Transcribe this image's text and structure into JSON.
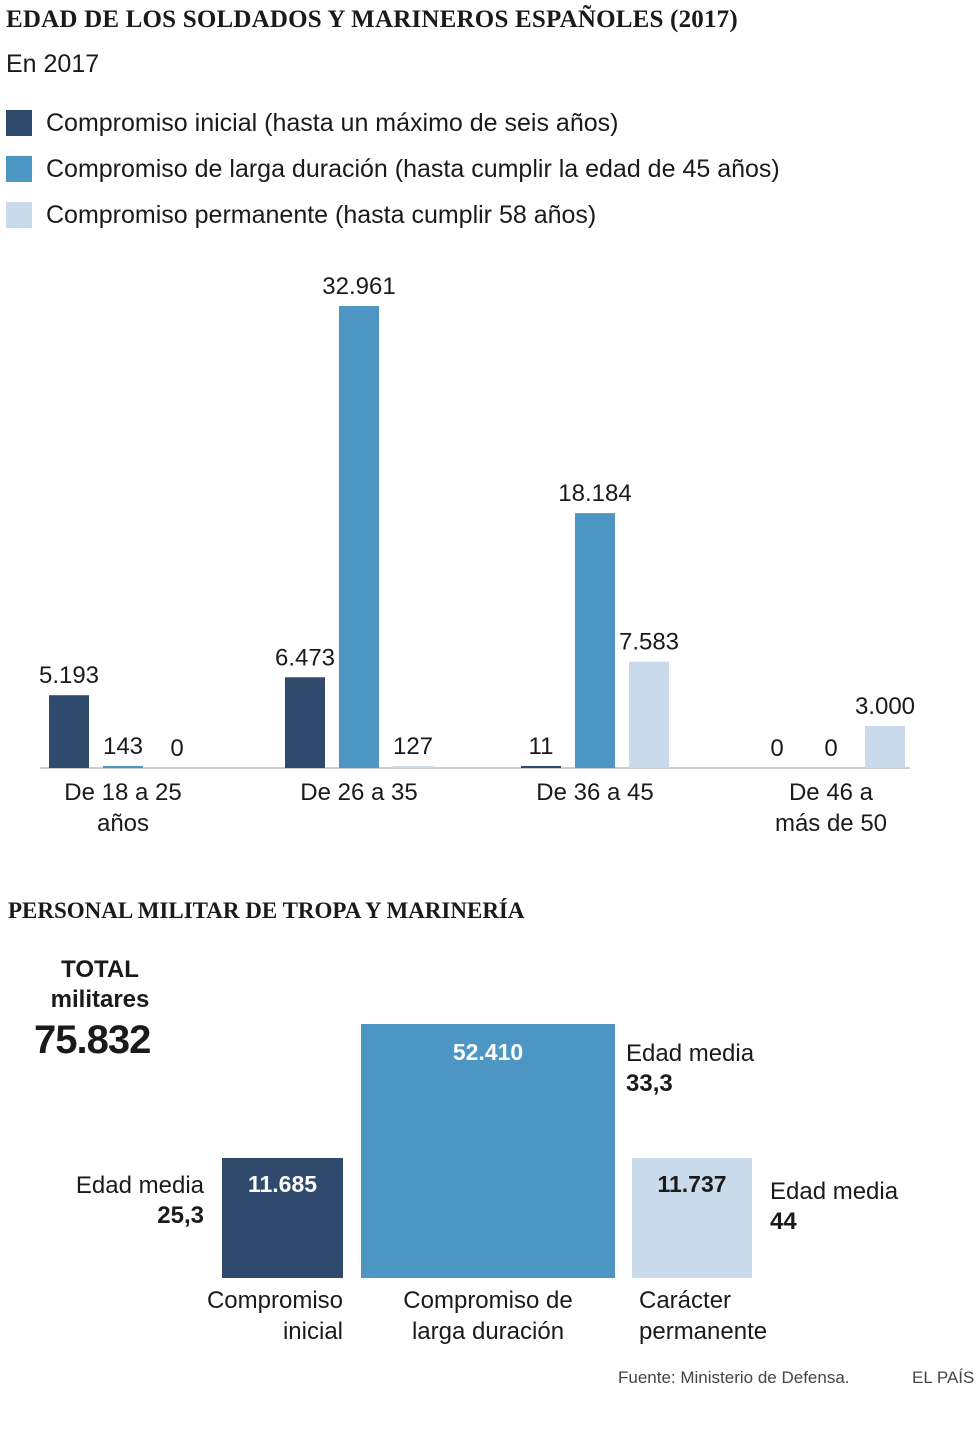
{
  "header": {
    "title": "EDAD DE LOS SOLDADOS Y MARINEROS ESPAÑOLES (2017)",
    "subtitle": "En 2017"
  },
  "legend": [
    {
      "label": "Compromiso inicial (hasta un máximo de seis años)",
      "color": "#2f4a6d"
    },
    {
      "label": "Compromiso de larga duración (hasta cumplir la edad de 45 años)",
      "color": "#4d96c4"
    },
    {
      "label": "Compromiso permanente (hasta cumplir 58 años)",
      "color": "#c9dbea"
    }
  ],
  "chart_data": [
    {
      "type": "bar",
      "title": "EDAD DE LOS SOLDADOS Y MARINEROS ESPAÑOLES (2017)",
      "subtitle": "En 2017",
      "categories": [
        [
          "De 18 a 25",
          "años"
        ],
        [
          "De 26 a 35"
        ],
        [
          "De 36 a 45"
        ],
        [
          "De 46 a",
          "más de 50"
        ]
      ],
      "series": [
        {
          "name": "Compromiso inicial (hasta un máximo de seis años)",
          "color": "#2f4a6d",
          "values": [
            5193,
            6473,
            11,
            0
          ],
          "labels": [
            "5.193",
            "6.473",
            "11",
            "0"
          ]
        },
        {
          "name": "Compromiso de larga duración (hasta cumplir la edad de 45 años)",
          "color": "#4d96c4",
          "values": [
            143,
            32961,
            18184,
            0
          ],
          "labels": [
            "143",
            "32.961",
            "18.184",
            "0"
          ]
        },
        {
          "name": "Compromiso permanente (hasta cumplir 58 años)",
          "color": "#c9dbea",
          "values": [
            0,
            127,
            7583,
            3000
          ],
          "labels": [
            "0",
            "127",
            "7.583",
            "3.000"
          ]
        }
      ],
      "ylim": [
        0,
        32961
      ],
      "grid": false
    },
    {
      "type": "bar",
      "title": "PERSONAL MILITAR DE TROPA Y MARINERÍA",
      "total_label": [
        "TOTAL",
        "militares"
      ],
      "total_value": "75.832",
      "items": [
        {
          "category": [
            "Compromiso",
            "inicial"
          ],
          "value": 11685,
          "value_label": "11.685",
          "age_label": "Edad media",
          "age": "25,3",
          "color": "#2f4a6d"
        },
        {
          "category": [
            "Compromiso de",
            "larga duración"
          ],
          "value": 52410,
          "value_label": "52.410",
          "age_label": "Edad media",
          "age": "33,3",
          "color": "#4d96c4"
        },
        {
          "category": [
            "Carácter",
            "permanente"
          ],
          "value": 11737,
          "value_label": "11.737",
          "age_label": "Edad media",
          "age": "44",
          "color": "#c9dbea"
        }
      ]
    }
  ],
  "footer": {
    "source": "Fuente: Ministerio de Defensa.",
    "brand": "EL PAÍS"
  }
}
